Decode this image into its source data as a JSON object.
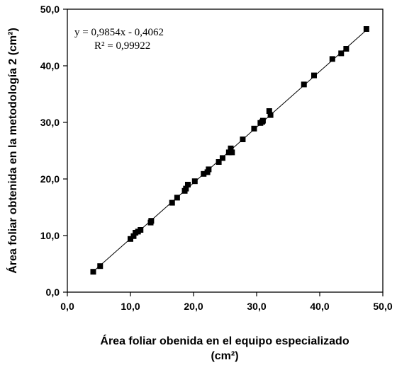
{
  "chart_data": {
    "type": "scatter",
    "xlabel_line1": "Área foliar obenida en el equipo especializado",
    "xlabel_line2": "(cm²)",
    "ylabel": "Área foliar obtenida en la metodología 2 (cm²)",
    "xlim": [
      0,
      50
    ],
    "ylim": [
      0,
      50
    ],
    "x_ticks": [
      0,
      10,
      20,
      30,
      40,
      50
    ],
    "y_ticks": [
      0,
      10,
      20,
      30,
      40,
      50
    ],
    "x_tick_labels": [
      "0,0",
      "10,0",
      "20,0",
      "30,0",
      "40,0",
      "50,0"
    ],
    "y_tick_labels": [
      "0,0",
      "10,0",
      "20,0",
      "30,0",
      "40,0",
      "50,0"
    ],
    "trendline": {
      "slope": 0.9854,
      "intercept": -0.4062,
      "x_range": [
        4.0,
        47.5
      ]
    },
    "annotations": [
      "y = 0,9854x - 0,4062",
      "R² = 0,99922"
    ],
    "marker": "square",
    "grid": false,
    "x": [
      4.1,
      5.2,
      10.0,
      10.5,
      10.8,
      11.2,
      11.6,
      13.2,
      13.3,
      16.6,
      17.4,
      18.6,
      18.8,
      19.1,
      20.2,
      21.6,
      22.2,
      22.4,
      24.0,
      24.6,
      25.6,
      25.9,
      26.1,
      27.8,
      29.6,
      30.6,
      30.9,
      31.0,
      32.0,
      32.2,
      37.5,
      39.1,
      42.0,
      43.4,
      44.2,
      47.4
    ],
    "y": [
      3.6,
      4.6,
      9.4,
      9.9,
      10.5,
      10.7,
      11.0,
      12.3,
      12.6,
      15.8,
      16.7,
      17.9,
      18.3,
      19.0,
      19.6,
      20.9,
      21.2,
      21.7,
      23.0,
      23.7,
      24.7,
      25.4,
      24.7,
      27.0,
      28.9,
      29.9,
      30.1,
      30.3,
      32.0,
      31.3,
      36.7,
      38.3,
      41.2,
      42.2,
      43.0,
      46.5
    ]
  }
}
